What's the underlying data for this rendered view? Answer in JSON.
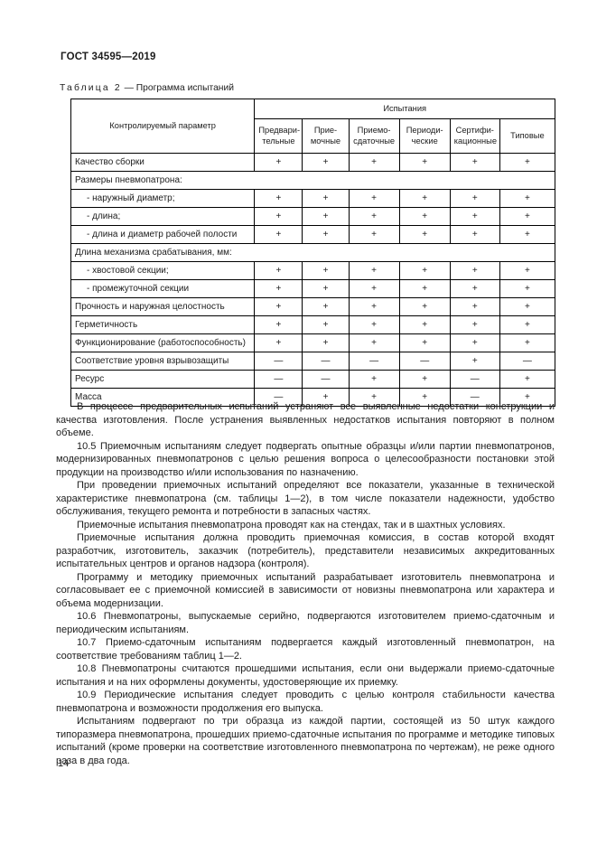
{
  "doc": {
    "standard_code": "ГОСТ 34595—2019",
    "page_number": "14"
  },
  "table": {
    "caption_prefix": "Таблица 2",
    "caption_rest": " — Программа испытаний",
    "param_header": "Контролируемый параметр",
    "group_header": "Испытания",
    "columns": [
      "Предвари-\nтельные",
      "Прие-\nмочные",
      "Приемо-\nсдаточные",
      "Периоди-\nческие",
      "Сертифи-\nкационные",
      "Типовые"
    ],
    "rows": [
      {
        "label": "Качество сборки",
        "type": "normal",
        "values": [
          "+",
          "+",
          "+",
          "+",
          "+",
          "+"
        ]
      },
      {
        "label": "Размеры пневмопатрона:",
        "type": "section",
        "values": []
      },
      {
        "label": "- наружный диаметр;",
        "type": "sub",
        "values": [
          "+",
          "+",
          "+",
          "+",
          "+",
          "+"
        ]
      },
      {
        "label": "- длина;",
        "type": "sub",
        "values": [
          "+",
          "+",
          "+",
          "+",
          "+",
          "+"
        ]
      },
      {
        "label": "- длина и диаметр рабочей полости",
        "type": "sub",
        "values": [
          "+",
          "+",
          "+",
          "+",
          "+",
          "+"
        ]
      },
      {
        "label": "Длина механизма срабатывания, мм:",
        "type": "section",
        "values": []
      },
      {
        "label": "- хвостовой секции;",
        "type": "sub",
        "values": [
          "+",
          "+",
          "+",
          "+",
          "+",
          "+"
        ]
      },
      {
        "label": "- промежуточной секции",
        "type": "sub",
        "values": [
          "+",
          "+",
          "+",
          "+",
          "+",
          "+"
        ]
      },
      {
        "label": "Прочность и наружная целостность",
        "type": "normal",
        "values": [
          "+",
          "+",
          "+",
          "+",
          "+",
          "+"
        ]
      },
      {
        "label": "Герметичность",
        "type": "normal",
        "values": [
          "+",
          "+",
          "+",
          "+",
          "+",
          "+"
        ]
      },
      {
        "label": "Функционирование (работоспособность)",
        "type": "normal",
        "values": [
          "+",
          "+",
          "+",
          "+",
          "+",
          "+"
        ]
      },
      {
        "label": "Соответствие уровня взрывозащиты",
        "type": "normal",
        "values": [
          "—",
          "—",
          "—",
          "—",
          "+",
          "—"
        ]
      },
      {
        "label": "Ресурс",
        "type": "normal",
        "values": [
          "—",
          "—",
          "+",
          "+",
          "—",
          "+"
        ]
      },
      {
        "label": "Масса",
        "type": "normal",
        "values": [
          "—",
          "+",
          "+",
          "+",
          "—",
          "+"
        ]
      }
    ]
  },
  "paragraphs": [
    "В процессе предварительных испытаний устраняют все выявленные недостатки конструкции и качества изготовления. После устранения выявленных недостатков испытания повторяют в полном объеме.",
    "10.5 Приемочным испытаниям следует подвергать опытные образцы и/или партии пневмопатронов, модернизированных пневмопатронов с целью решения вопроса о целесообразности постановки этой продукции на производство и/или использования по назначению.",
    "При проведении приемочных испытаний определяют все показатели, указанные в технической характеристике пневмопатрона (см. таблицы 1—2), в том числе показатели надежности, удобство обслуживания, текущего ремонта и потребности в запасных частях.",
    "Приемочные испытания пневмопатрона проводят как на стендах, так и в шахтных условиях.",
    "Приемочные испытания должна проводить приемочная комиссия, в состав которой входят разработчик, изготовитель, заказчик (потребитель), представители независимых аккредитованных испытательных центров и органов надзора (контроля).",
    "Программу и методику приемочных испытаний разрабатывает изготовитель пневмопатрона и согласовывает ее с приемочной комиссией в зависимости от новизны пневмопатрона или характера и объема модернизации.",
    "10.6 Пневмопатроны, выпускаемые серийно, подвергаются изготовителем приемо-сдаточным и периодическим испытаниям.",
    "10.7 Приемо-сдаточным испытаниям подвергается каждый изготовленный пневмопатрон, на соответствие требованиям таблиц 1—2.",
    "10.8 Пневмопатроны считаются прошедшими испытания, если они выдержали приемо-сдаточные испытания и на них оформлены документы, удостоверяющие их приемку.",
    "10.9 Периодические испытания следует проводить с целью контроля стабильности качества пневмопатрона и возможности продолжения его выпуска.",
    "Испытаниям подвергают по три образца из каждой партии, состоящей из 50 штук каждого типоразмера пневмопатрона, прошедших приемо-сдаточные испытания по программе и методике типовых испытаний (кроме проверки на соответствие изготовленного пневмопатрона по чертежам), не реже одного раза в два года."
  ]
}
